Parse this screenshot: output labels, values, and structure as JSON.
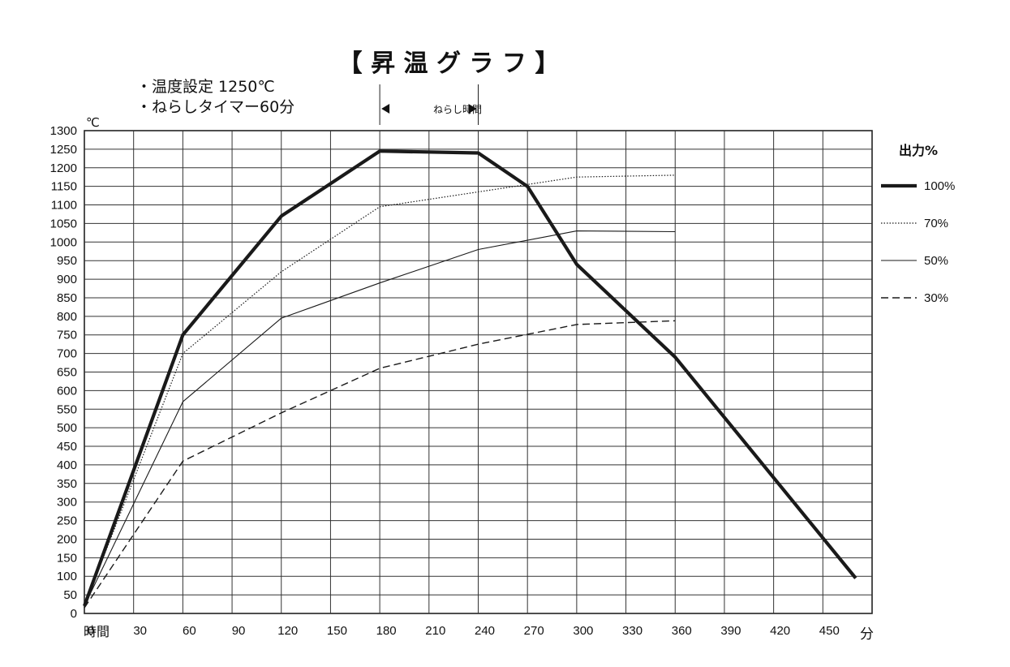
{
  "chart_data": {
    "type": "line",
    "title": "【 昇 温 グ ラ フ 】",
    "notes": [
      "・温度設定 1250℃",
      "・ねらしタイマー60分"
    ],
    "annotation": "ねらし時間",
    "annotation_range": [
      180,
      240
    ],
    "ylabel": "℃",
    "xlabel": "時間",
    "xunit": "分",
    "legend_title": "出力%",
    "legend_position": "right",
    "grid": true,
    "xlim": [
      0,
      480
    ],
    "ylim": [
      0,
      1300
    ],
    "x_ticks": [
      0,
      30,
      60,
      90,
      120,
      150,
      180,
      210,
      240,
      270,
      300,
      330,
      360,
      390,
      420,
      450
    ],
    "y_ticks": [
      0,
      50,
      100,
      150,
      200,
      250,
      300,
      350,
      400,
      450,
      500,
      550,
      600,
      650,
      700,
      750,
      800,
      850,
      900,
      950,
      1000,
      1050,
      1100,
      1150,
      1200,
      1250,
      1300
    ],
    "series": [
      {
        "name": "100%",
        "style": "thick",
        "points": [
          [
            0,
            20
          ],
          [
            60,
            750
          ],
          [
            120,
            1070
          ],
          [
            180,
            1245
          ],
          [
            240,
            1240
          ],
          [
            270,
            1150
          ],
          [
            300,
            940
          ],
          [
            360,
            690
          ],
          [
            470,
            95
          ]
        ]
      },
      {
        "name": "70%",
        "style": "dotted",
        "points": [
          [
            0,
            20
          ],
          [
            60,
            700
          ],
          [
            120,
            920
          ],
          [
            180,
            1095
          ],
          [
            240,
            1135
          ],
          [
            300,
            1175
          ],
          [
            360,
            1180
          ]
        ]
      },
      {
        "name": "50%",
        "style": "thin",
        "points": [
          [
            0,
            20
          ],
          [
            60,
            570
          ],
          [
            120,
            795
          ],
          [
            180,
            890
          ],
          [
            240,
            980
          ],
          [
            300,
            1030
          ],
          [
            360,
            1028
          ]
        ]
      },
      {
        "name": "30%",
        "style": "dashed",
        "points": [
          [
            0,
            15
          ],
          [
            60,
            410
          ],
          [
            120,
            540
          ],
          [
            180,
            660
          ],
          [
            240,
            725
          ],
          [
            300,
            778
          ],
          [
            360,
            788
          ]
        ]
      }
    ]
  }
}
